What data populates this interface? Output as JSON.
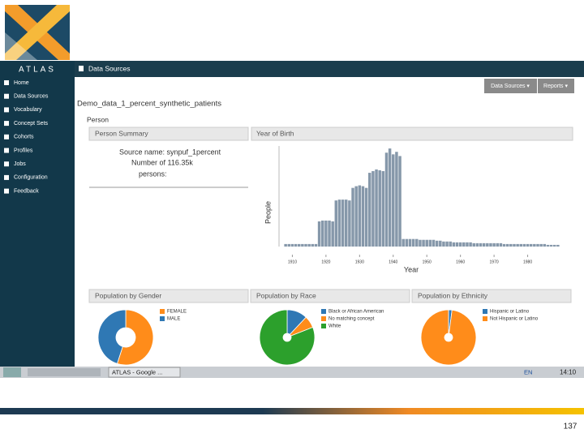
{
  "sidebar": {
    "brand": "ATLAS",
    "menu": [
      "Home",
      "Data Sources",
      "Vocabulary",
      "Concept Sets",
      "Cohorts",
      "Profiles",
      "Jobs",
      "Configuration",
      "Feedback"
    ]
  },
  "header": {
    "title": "Data Sources",
    "buttons": [
      "Data Sources ▾",
      "Reports ▾"
    ]
  },
  "content": {
    "source_title": "Demo_data_1_percent_synthetic_patients",
    "section": "Person",
    "person_summary": {
      "title": "Person Summary",
      "lines": [
        "Source name: synpuf_1percent",
        "Number of 116.35k",
        "persons:"
      ]
    },
    "year_of_birth": {
      "title": "Year of Birth",
      "type": "bar",
      "xlabel": "Year",
      "ylabel": "People",
      "color": "#8698aa",
      "x": [
        1908,
        1909,
        1910,
        1911,
        1912,
        1913,
        1914,
        1915,
        1916,
        1917,
        1918,
        1919,
        1920,
        1921,
        1922,
        1923,
        1924,
        1925,
        1926,
        1927,
        1928,
        1929,
        1930,
        1931,
        1932,
        1933,
        1934,
        1935,
        1936,
        1937,
        1938,
        1939,
        1940,
        1941,
        1942,
        1943,
        1944,
        1945,
        1946,
        1947,
        1948,
        1949,
        1950,
        1951,
        1952,
        1953,
        1954,
        1955,
        1956,
        1957,
        1958,
        1959,
        1960,
        1961,
        1962,
        1963,
        1964,
        1965,
        1966,
        1967,
        1968,
        1969,
        1970,
        1971,
        1972,
        1973,
        1974,
        1975,
        1976,
        1977,
        1978,
        1979,
        1980,
        1981,
        1982,
        1983,
        1984,
        1985,
        1986,
        1987,
        1988,
        1989
      ],
      "values": [
        3,
        3,
        3,
        3,
        3,
        3,
        3,
        3,
        3,
        3,
        30,
        31,
        31,
        31,
        30,
        55,
        56,
        56,
        56,
        55,
        70,
        72,
        73,
        72,
        70,
        88,
        90,
        92,
        91,
        90,
        112,
        117,
        110,
        113,
        108,
        9,
        9,
        9,
        9,
        9,
        8,
        8,
        8,
        8,
        8,
        7,
        7,
        6,
        6,
        6,
        5,
        5,
        5,
        5,
        5,
        5,
        4,
        4,
        4,
        4,
        4,
        4,
        4,
        4,
        4,
        3,
        3,
        3,
        3,
        3,
        3,
        3,
        3,
        3,
        3,
        3,
        3,
        3,
        2,
        2,
        2,
        2
      ],
      "xlim": [
        1907,
        1990
      ],
      "ylim": [
        0,
        120
      ],
      "xticks": [
        1910,
        1920,
        1930,
        1940,
        1950,
        1960,
        1970,
        1980
      ]
    },
    "pies": [
      {
        "title": "Population by Gender",
        "type": "pie",
        "series": [
          {
            "name": "FEMALE",
            "color": "#ff8c1a",
            "value": 55
          },
          {
            "name": "MALE",
            "color": "#2f78b4",
            "value": 45
          }
        ]
      },
      {
        "title": "Population by Race",
        "type": "pie",
        "series": [
          {
            "name": "Black or African American",
            "color": "#2f78b4",
            "value": 12
          },
          {
            "name": "No matching concept",
            "color": "#ff8c1a",
            "value": 7
          },
          {
            "name": "White",
            "color": "#2ca02c",
            "value": 81
          }
        ]
      },
      {
        "title": "Population by Ethnicity",
        "type": "pie",
        "series": [
          {
            "name": "Hispanic or Latino",
            "color": "#2f78b4",
            "value": 2
          },
          {
            "name": "Not Hispanic or Latino",
            "color": "#ff8c1a",
            "value": 98
          }
        ]
      }
    ]
  },
  "taskbar": {
    "window": "ATLAS - Google ...",
    "lang": "EN",
    "time": "14:10"
  },
  "slide_number": "137"
}
